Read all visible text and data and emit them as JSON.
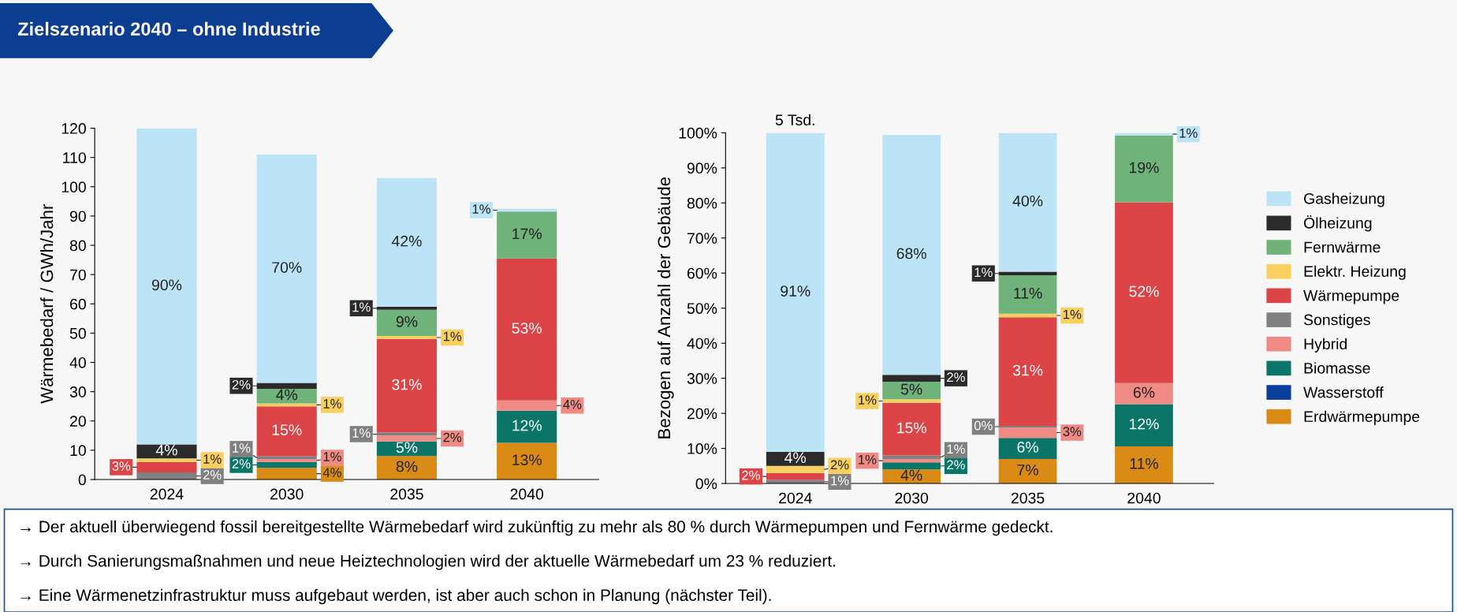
{
  "chart_data": [
    {
      "type": "bar",
      "stacked": true,
      "title": "Zielszenario 2040 – ohne Industrie",
      "ylabel": "Wärmebedarf / GWh/Jahr",
      "categories": [
        "2024",
        "2030",
        "2035",
        "2040"
      ],
      "ylim": [
        0,
        120
      ],
      "yticks": [
        0,
        10,
        20,
        30,
        40,
        50,
        60,
        70,
        80,
        90,
        100,
        110,
        120
      ],
      "grid": false,
      "legend": false,
      "series": [
        {
          "color": "#d98b15",
          "values": [
            0,
            4,
            8,
            12.5
          ]
        },
        {
          "color": "#0b7668",
          "values": [
            0,
            2,
            5,
            11
          ]
        },
        {
          "color": "#f08a85",
          "values": [
            0,
            1,
            2,
            3.5
          ]
        },
        {
          "color": "#808080",
          "values": [
            2.4,
            1,
            1,
            0
          ]
        },
        {
          "color": "#dd4447",
          "values": [
            3.6,
            17,
            32,
            48.5
          ]
        },
        {
          "color": "#f9cf5f",
          "values": [
            1.2,
            1,
            1,
            0
          ]
        },
        {
          "color": "#6fb27a",
          "values": [
            0,
            5,
            9,
            16
          ]
        },
        {
          "color": "#2b2b2b",
          "values": [
            4.8,
            2,
            1,
            0
          ]
        },
        {
          "color": "#bde3f7",
          "values": [
            108,
            78,
            44,
            1
          ]
        }
      ],
      "annotations": [
        "2%",
        "3%",
        "1%",
        "4%",
        "90%",
        "4%",
        "2%",
        "1%",
        "1%",
        "15%",
        "1%",
        "4%",
        "2%",
        "70%",
        "8%",
        "5%",
        "2%",
        "1%",
        "31%",
        "1%",
        "9%",
        "1%",
        "42%",
        "13%",
        "12%",
        "4%",
        "53%",
        "17%",
        "1%",
        "→ Der aktuell überwiegend fossil bereitgestellte Wärmebedarf wird zukünftig zu mehr als 80 % durch Wärmepumpen und Fernwärme gedeckt.",
        "→ Durch Sanierungsmaßnahmen und neue Heiztechnologien wird der aktuelle Wärmebedarf um 23 % reduziert.",
        "→ Eine Wärmenetzinfrastruktur muss aufgebaut werden, ist aber auch schon in Planung (nächster Teil)."
      ]
    },
    {
      "type": "bar",
      "stacked": true,
      "ylabel": "Bezogen auf Anzahl der Gebäude",
      "categories": [
        "2024",
        "2030",
        "2035",
        "2040"
      ],
      "ylim": [
        0,
        100
      ],
      "yticks": [
        {
          "value": 0,
          "label": "0%"
        },
        {
          "value": 10,
          "label": "10%"
        },
        {
          "value": 20,
          "label": "20%"
        },
        {
          "value": 30,
          "label": "30%"
        },
        {
          "value": 40,
          "label": "40%"
        },
        {
          "value": 50,
          "label": "50%"
        },
        {
          "value": 60,
          "label": "60%"
        },
        {
          "value": 70,
          "label": "70%"
        },
        {
          "value": 80,
          "label": "80%"
        },
        {
          "value": 90,
          "label": "90%"
        },
        {
          "value": 100,
          "label": "100%"
        }
      ],
      "grid": false,
      "legend": "right",
      "series": [
        {
          "name": "Erdwärmepumpe",
          "color": "#d98b15",
          "values": [
            0,
            4,
            7,
            10.6
          ],
          "value_labels": [
            null,
            "4%",
            "7%",
            "11%"
          ]
        },
        {
          "name": "Wasserstoff",
          "color": "#0b3d9c",
          "values": [
            0,
            0,
            0,
            0
          ],
          "value_labels": [
            null,
            null,
            null,
            null
          ]
        },
        {
          "name": "Biomasse",
          "color": "#0b7668",
          "values": [
            0,
            2,
            6,
            12
          ],
          "value_labels": [
            null,
            "2%",
            "6%",
            "12%"
          ]
        },
        {
          "name": "Hybrid",
          "color": "#f08a85",
          "values": [
            0,
            1,
            3,
            6
          ],
          "value_labels": [
            null,
            "1%",
            "3%",
            "6%"
          ]
        },
        {
          "name": "Sonstiges",
          "color": "#808080",
          "values": [
            1,
            1,
            0.4,
            0
          ],
          "value_labels": [
            "1%",
            "1%",
            "0%",
            null
          ]
        },
        {
          "name": "Wärmepumpe",
          "color": "#dd4447",
          "values": [
            2,
            15,
            31,
            51.6
          ],
          "value_labels": [
            "2%",
            "15%",
            "31%",
            "52%"
          ]
        },
        {
          "name": "Elektr. Heizung",
          "color": "#f9cf5f",
          "values": [
            2,
            1,
            1,
            0
          ],
          "value_labels": [
            "2%",
            "1%",
            "1%",
            null
          ]
        },
        {
          "name": "Fernwärme",
          "color": "#6fb27a",
          "values": [
            0,
            5,
            11,
            19
          ],
          "value_labels": [
            null,
            "5%",
            "11%",
            "19%"
          ]
        },
        {
          "name": "Ölheizung",
          "color": "#2b2b2b",
          "values": [
            4,
            2,
            1,
            0
          ],
          "value_labels": [
            "4%",
            "2%",
            "1%",
            null
          ]
        },
        {
          "name": "Gasheizung",
          "color": "#bde3f7",
          "values": [
            91,
            68.4,
            39.6,
            0.8
          ],
          "value_labels": [
            "91%",
            "68%",
            "40%",
            "1%"
          ]
        }
      ],
      "annotations": [
        {
          "text": "5 Tsd.",
          "x": "2024",
          "y": 100
        }
      ]
    }
  ]
}
